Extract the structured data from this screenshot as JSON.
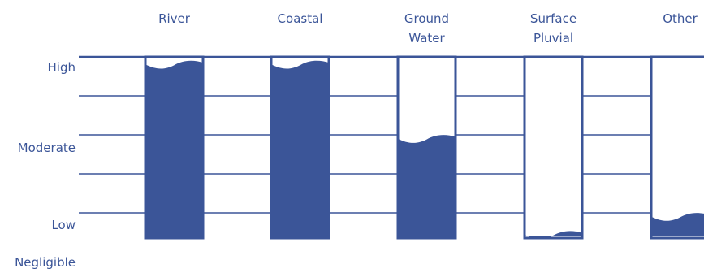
{
  "chart_data": {
    "type": "bar",
    "title": "",
    "xlabel": "",
    "ylabel": "",
    "categories": [
      [
        "River"
      ],
      [
        "Coastal"
      ],
      [
        "Ground",
        "Water"
      ],
      [
        "Surface",
        "Pluvial"
      ],
      [
        "Other"
      ]
    ],
    "levels": [
      "High",
      "Moderate",
      "Low",
      "Negligible"
    ],
    "values": [
      0.97,
      0.97,
      0.56,
      0.03,
      0.13
    ],
    "ylim": [
      0,
      1
    ],
    "grid": true,
    "legend": "none",
    "style": {
      "fill_shape": "wave-topped cylinders",
      "color": "#3b5598"
    }
  }
}
